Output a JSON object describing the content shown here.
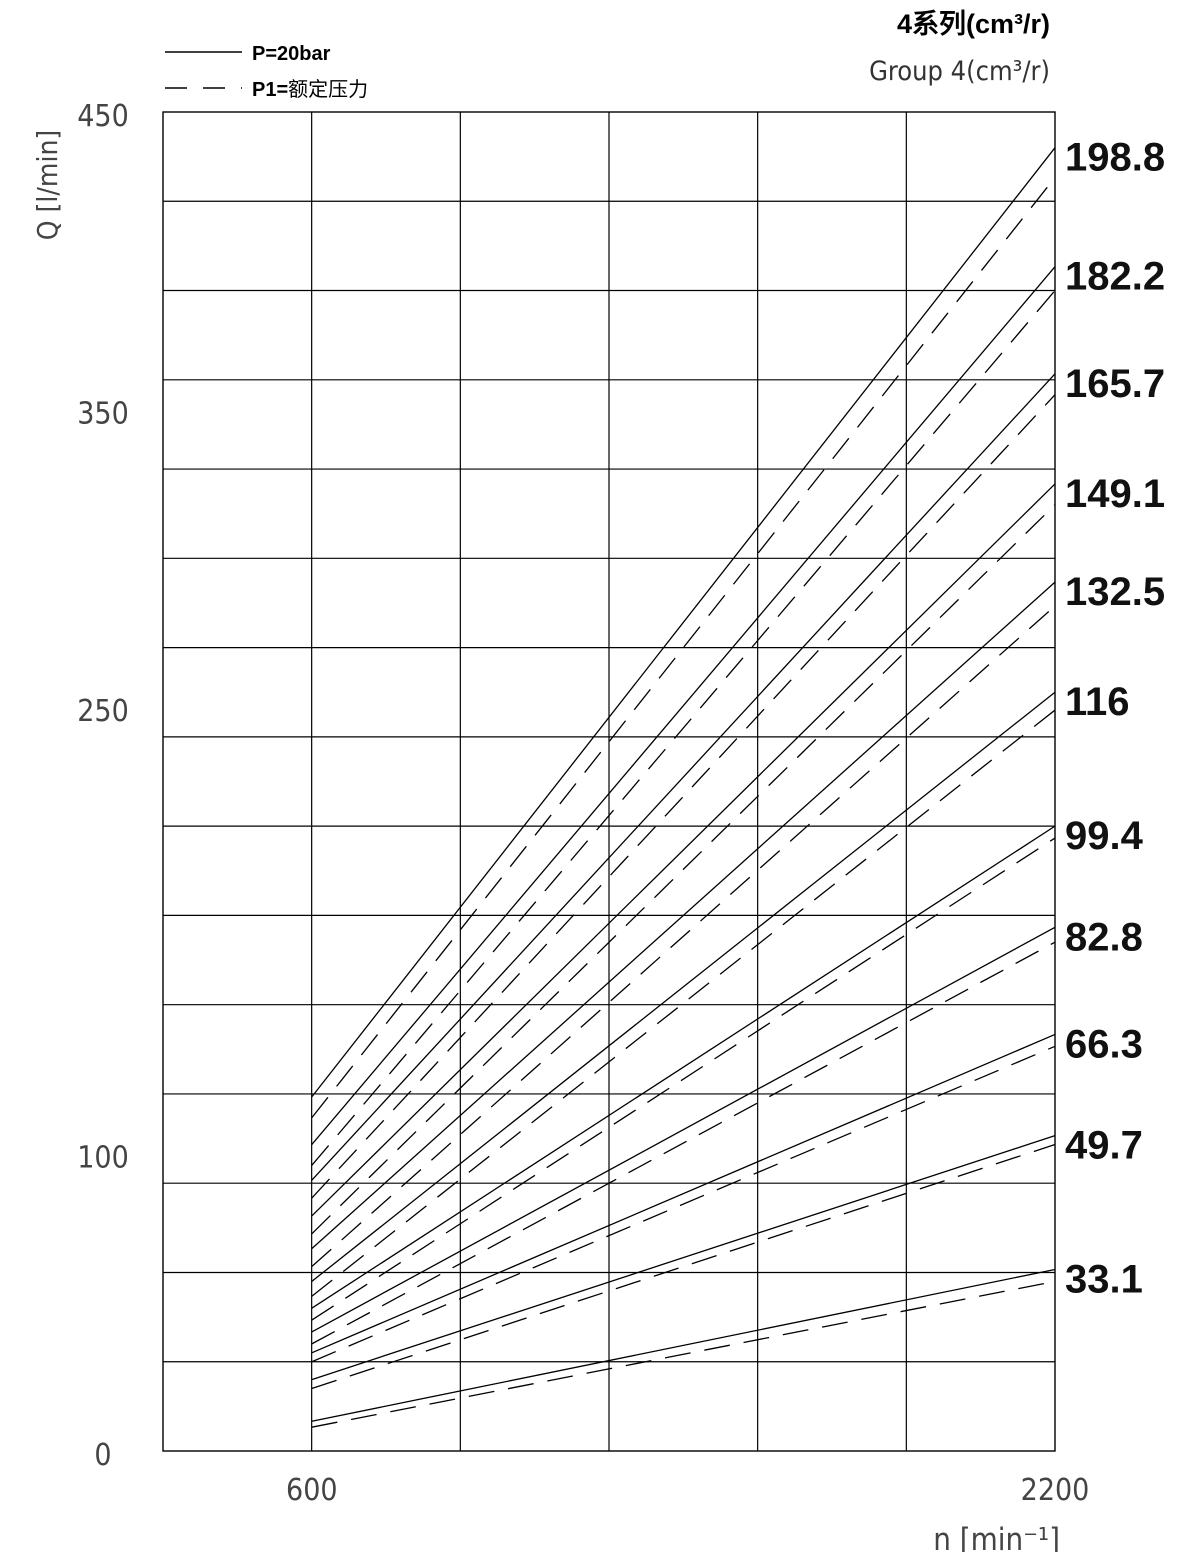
{
  "chart_data": {
    "type": "line",
    "title": "4系列(cm³/r)",
    "subtitle": "Group 4(cm³/r)",
    "xlabel": "n [min⁻¹]",
    "ylabel": "Q [l/min]",
    "xlim": [
      0,
      2200
    ],
    "ylim": [
      0,
      450
    ],
    "x_ticks": [
      "600",
      "2200"
    ],
    "y_ticks": [
      "0",
      "100",
      "250",
      "350",
      "450"
    ],
    "grid": true,
    "legend": {
      "position": "top-left",
      "solid_label": "P=20bar",
      "dashed_label_bold": "P1=",
      "dashed_label_rest": "额定压力"
    },
    "series": [
      {
        "name": "198.8",
        "solid": [
          [
            600,
            119
          ],
          [
            2200,
            438
          ]
        ],
        "dashed": [
          [
            600,
            112
          ],
          [
            2200,
            428
          ]
        ]
      },
      {
        "name": "182.2",
        "solid": [
          [
            600,
            103
          ],
          [
            2200,
            398
          ]
        ],
        "dashed": [
          [
            600,
            96
          ],
          [
            2200,
            390
          ]
        ]
      },
      {
        "name": "165.7",
        "solid": [
          [
            600,
            91
          ],
          [
            2200,
            362
          ]
        ],
        "dashed": [
          [
            600,
            85
          ],
          [
            2200,
            355
          ]
        ]
      },
      {
        "name": "149.1",
        "solid": [
          [
            600,
            79
          ],
          [
            2200,
            325
          ]
        ],
        "dashed": [
          [
            600,
            73
          ],
          [
            2200,
            318
          ]
        ]
      },
      {
        "name": "132.5",
        "solid": [
          [
            600,
            68
          ],
          [
            2200,
            292
          ]
        ],
        "dashed": [
          [
            600,
            62
          ],
          [
            2200,
            284
          ]
        ]
      },
      {
        "name": "116",
        "solid": [
          [
            600,
            57
          ],
          [
            2200,
            255
          ]
        ],
        "dashed": [
          [
            600,
            52
          ],
          [
            2200,
            249
          ]
        ]
      },
      {
        "name": "99.4",
        "solid": [
          [
            600,
            48
          ],
          [
            2200,
            210
          ]
        ],
        "dashed": [
          [
            600,
            44
          ],
          [
            2200,
            206
          ]
        ]
      },
      {
        "name": "82.8",
        "solid": [
          [
            600,
            40
          ],
          [
            2200,
            176
          ]
        ],
        "dashed": [
          [
            600,
            36
          ],
          [
            2200,
            171
          ]
        ]
      },
      {
        "name": "66.3",
        "solid": [
          [
            600,
            33
          ],
          [
            2200,
            140
          ]
        ],
        "dashed": [
          [
            600,
            30
          ],
          [
            2200,
            136
          ]
        ]
      },
      {
        "name": "49.7",
        "solid": [
          [
            600,
            24
          ],
          [
            2200,
            106
          ]
        ],
        "dashed": [
          [
            600,
            21
          ],
          [
            2200,
            103
          ]
        ]
      },
      {
        "name": "33.1",
        "solid": [
          [
            600,
            10
          ],
          [
            2200,
            61
          ]
        ],
        "dashed": [
          [
            600,
            8
          ],
          [
            2200,
            57
          ]
        ]
      }
    ]
  }
}
